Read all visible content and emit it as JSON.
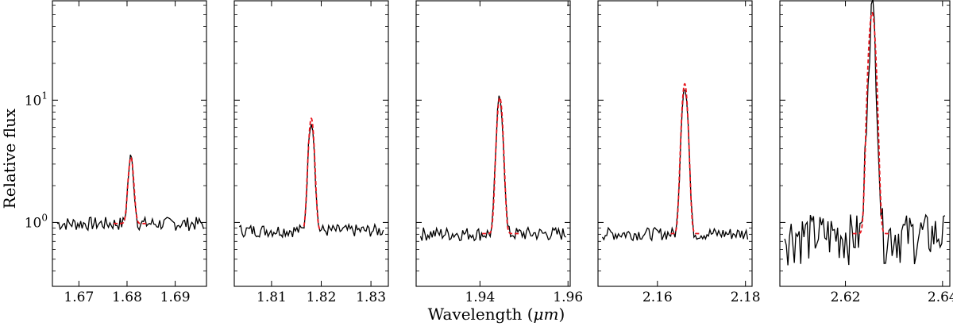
{
  "chart_data": {
    "type": "line",
    "xlabel": "Wavelength ",
    "xlabel_unit": "μm",
    "xlabel_unit_open": "(",
    "xlabel_unit_close": ")",
    "ylabel": "Relative flux",
    "y_scale": "log",
    "ylim": [
      0.3,
      65
    ],
    "y_ticks": [
      {
        "value": 1,
        "base": "10",
        "exp": "0"
      },
      {
        "value": 10,
        "base": "10",
        "exp": "1"
      }
    ],
    "series_colors": {
      "observed": "#000000",
      "model": "#e8141c"
    },
    "panels": [
      {
        "xlim": [
          1.6645,
          1.6965
        ],
        "xticks": [
          {
            "value": 1.67,
            "label": "1.67"
          },
          {
            "value": 1.68,
            "label": "1.68"
          },
          {
            "value": 1.69,
            "label": "1.69"
          }
        ],
        "continuum": 0.98,
        "peak": 3.4,
        "line_center": 1.6808,
        "sigma": 0.0005,
        "model_range": [
          1.6772,
          1.684
        ],
        "noise": 0.13,
        "x": [
          1.6655,
          1.6959
        ]
      },
      {
        "xlim": [
          1.8025,
          1.8335
        ],
        "xticks": [
          {
            "value": 1.81,
            "label": "1.81"
          },
          {
            "value": 1.82,
            "label": "1.82"
          },
          {
            "value": 1.83,
            "label": "1.83"
          }
        ],
        "continuum": 0.86,
        "peak": 7.1,
        "line_center": 1.818,
        "sigma": 0.0005,
        "model_range": [
          1.8165,
          1.82
        ],
        "noise": 0.12,
        "x": [
          1.8035,
          1.8325
        ]
      },
      {
        "xlim": [
          1.9255,
          1.9605
        ],
        "xticks": [
          {
            "value": 1.94,
            "label": "1.94"
          },
          {
            "value": 1.96,
            "label": "1.96"
          }
        ],
        "continuum": 0.81,
        "peak": 10.5,
        "line_center": 1.9445,
        "sigma": 0.0006,
        "model_range": [
          1.9405,
          1.949
        ],
        "noise": 0.13,
        "x": [
          1.9265,
          1.9595
        ]
      },
      {
        "xlim": [
          2.1465,
          2.1815
        ],
        "xticks": [
          {
            "value": 2.16,
            "label": "2.16"
          },
          {
            "value": 2.18,
            "label": "2.18"
          }
        ],
        "continuum": 0.81,
        "peak": 13.6,
        "line_center": 2.1662,
        "sigma": 0.0006,
        "model_range": [
          2.163,
          2.1695
        ],
        "noise": 0.12,
        "x": [
          2.1475,
          2.1805
        ]
      },
      {
        "xlim": [
          2.6065,
          2.6415
        ],
        "xticks": [
          {
            "value": 2.62,
            "label": "2.62"
          },
          {
            "value": 2.64,
            "label": "2.64"
          }
        ],
        "continuum": 0.81,
        "peak": 52,
        "line_center": 2.6255,
        "sigma": 0.0006,
        "model_range": [
          2.6215,
          2.629
        ],
        "noise": 0.45,
        "x": [
          2.6075,
          2.6405
        ]
      }
    ]
  }
}
